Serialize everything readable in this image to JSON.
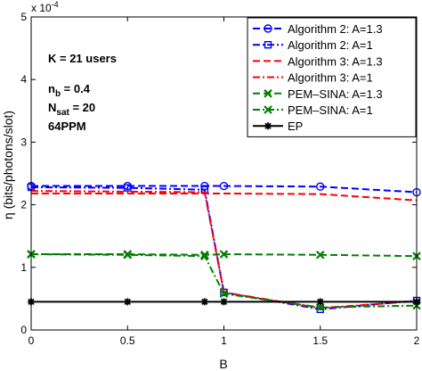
{
  "chart_data": {
    "type": "line",
    "xlabel": "B",
    "ylabel": "η (bits/photons/slot)",
    "exponent_label": "x 10",
    "exponent_power": "-4",
    "xlim": [
      0,
      2
    ],
    "ylim": [
      0,
      0.0005
    ],
    "xticks": [
      "0",
      "0.5",
      "1",
      "1.5",
      "2"
    ],
    "yticks": [
      "0",
      "1",
      "2",
      "3",
      "4",
      "5"
    ],
    "xtick_values": [
      0,
      0.5,
      1,
      1.5,
      2
    ],
    "ytick_values": [
      0,
      0.0001,
      0.0002,
      0.0003,
      0.0004,
      0.0005
    ],
    "grid": false,
    "legend_position": "top-right",
    "annotations": [
      {
        "text": "K = 21 users"
      },
      {
        "text": "n",
        "sub": "b",
        "rest": " = 0.4"
      },
      {
        "text": "N",
        "sub": "sat",
        "rest": " = 20"
      },
      {
        "text": "64PPM"
      }
    ],
    "series": [
      {
        "name": "Algorithm 2: A=1.3",
        "color": "#0000ff",
        "dash": "dashed",
        "marker": "circle",
        "x": [
          0,
          0.5,
          0.9,
          1,
          1.5,
          2
        ],
        "y": [
          0.00023,
          0.00023,
          0.00023,
          0.00023,
          0.000229,
          0.00022
        ]
      },
      {
        "name": "Algorithm 2: A=1",
        "color": "#0000ff",
        "dash": "dashdot",
        "marker": "square",
        "x": [
          0,
          0.5,
          0.9,
          1,
          1.5,
          2
        ],
        "y": [
          0.000228,
          0.000227,
          0.000224,
          6e-05,
          3.3e-05,
          4.7e-05
        ]
      },
      {
        "name": "Algorithm 3: A=1.3",
        "color": "#ff0000",
        "dash": "dashed",
        "marker": "none",
        "x": [
          0,
          0.5,
          0.9,
          1,
          1.5,
          2
        ],
        "y": [
          0.000218,
          0.000218,
          0.000218,
          0.000218,
          0.000217,
          0.000207
        ]
      },
      {
        "name": "Algorithm 3: A=1",
        "color": "#ff0000",
        "dash": "dashdot",
        "marker": "none",
        "x": [
          0,
          0.5,
          0.9,
          1,
          1.5,
          2
        ],
        "y": [
          0.000222,
          0.000221,
          0.00022,
          6e-05,
          3.5e-05,
          4.6e-05
        ]
      },
      {
        "name": "PEM–SINA: A=1.3",
        "color": "#008000",
        "dash": "dashed",
        "marker": "x",
        "x": [
          0,
          0.5,
          0.9,
          1,
          1.5,
          2
        ],
        "y": [
          0.000121,
          0.000121,
          0.00012,
          0.000121,
          0.00012,
          0.000118
        ]
      },
      {
        "name": "PEM–SINA: A=1",
        "color": "#008000",
        "dash": "dashdot",
        "marker": "x",
        "x": [
          0,
          0.5,
          0.9,
          1,
          1.5,
          2
        ],
        "y": [
          0.000121,
          0.00012,
          0.000118,
          5.8e-05,
          3.6e-05,
          3.9e-05
        ]
      },
      {
        "name": "EP",
        "color": "#000000",
        "dash": "solid",
        "marker": "star",
        "x": [
          0,
          0.5,
          0.9,
          1,
          1.5,
          2
        ],
        "y": [
          4.5e-05,
          4.5e-05,
          4.5e-05,
          4.5e-05,
          4.5e-05,
          4.5e-05
        ]
      }
    ]
  }
}
